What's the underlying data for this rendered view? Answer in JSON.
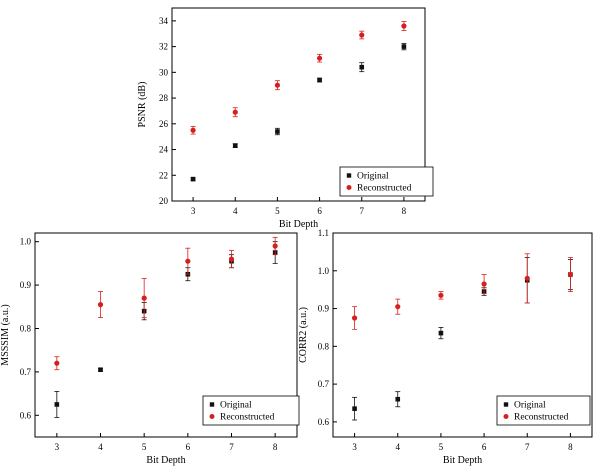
{
  "colors": {
    "original": "#111111",
    "reconstructed": "#d6201e"
  },
  "chart_data": [
    {
      "type": "scatter",
      "xlabel": "Bit Depth",
      "ylabel": "PSNR (dB)",
      "xlim": [
        2.5,
        8.5
      ],
      "ylim": [
        20,
        35
      ],
      "xticks": [
        3,
        4,
        5,
        6,
        7,
        8
      ],
      "yticks": [
        20,
        22,
        24,
        26,
        28,
        30,
        32,
        34
      ],
      "yticklabels": [
        "20",
        "22",
        "24",
        "26",
        "28",
        "30",
        "32",
        "34"
      ],
      "legend_position": "bottom-right",
      "grid": false,
      "series": [
        {
          "name": "Original",
          "x": [
            3,
            4,
            5,
            6,
            7,
            8
          ],
          "y": [
            21.7,
            24.3,
            25.4,
            29.4,
            30.4,
            32.0
          ],
          "err": [
            0.1,
            0.15,
            0.25,
            0.15,
            0.35,
            0.25
          ]
        },
        {
          "name": "Reconstructed",
          "x": [
            3,
            4,
            5,
            6,
            7,
            8
          ],
          "y": [
            25.5,
            26.9,
            29.0,
            31.1,
            32.9,
            33.6
          ],
          "err": [
            0.3,
            0.35,
            0.35,
            0.3,
            0.3,
            0.35
          ]
        }
      ]
    },
    {
      "type": "scatter",
      "xlabel": "Bit Depth",
      "ylabel": "MSSSIM (a.u.)",
      "xlim": [
        2.5,
        8.5
      ],
      "ylim": [
        0.55,
        1.02
      ],
      "xticks": [
        3,
        4,
        5,
        6,
        7,
        8
      ],
      "yticks": [
        0.6,
        0.7,
        0.8,
        0.9,
        1.0
      ],
      "yticklabels": [
        "0.6",
        "0.7",
        "0.8",
        "0.9",
        "1.0"
      ],
      "legend_position": "bottom-right",
      "grid": false,
      "series": [
        {
          "name": "Original",
          "x": [
            3,
            4,
            5,
            6,
            7,
            8
          ],
          "y": [
            0.625,
            0.705,
            0.84,
            0.925,
            0.955,
            0.975
          ],
          "err": [
            0.03,
            0.003,
            0.02,
            0.015,
            0.015,
            0.025
          ]
        },
        {
          "name": "Reconstructed",
          "x": [
            3,
            4,
            5,
            6,
            7,
            8
          ],
          "y": [
            0.72,
            0.855,
            0.87,
            0.955,
            0.96,
            0.99
          ],
          "err": [
            0.015,
            0.03,
            0.045,
            0.03,
            0.02,
            0.02
          ]
        }
      ]
    },
    {
      "type": "scatter",
      "xlabel": "Bit Depth",
      "ylabel": "CORR2 (a.u.)",
      "xlim": [
        2.5,
        8.5
      ],
      "ylim": [
        0.56,
        1.1
      ],
      "xticks": [
        3,
        4,
        5,
        6,
        7,
        8
      ],
      "yticks": [
        0.6,
        0.7,
        0.8,
        0.9,
        1.0,
        1.1
      ],
      "yticklabels": [
        "0.6",
        "0.7",
        "0.8",
        "0.9",
        "1.0",
        "1.1"
      ],
      "legend_position": "bottom-right",
      "grid": false,
      "series": [
        {
          "name": "Original",
          "x": [
            3,
            4,
            5,
            6,
            7,
            8
          ],
          "y": [
            0.635,
            0.66,
            0.835,
            0.945,
            0.975,
            0.99
          ],
          "err": [
            0.03,
            0.02,
            0.015,
            0.01,
            0.06,
            0.04
          ]
        },
        {
          "name": "Reconstructed",
          "x": [
            3,
            4,
            5,
            6,
            7,
            8
          ],
          "y": [
            0.875,
            0.905,
            0.935,
            0.965,
            0.98,
            0.99
          ],
          "err": [
            0.03,
            0.02,
            0.01,
            0.025,
            0.065,
            0.045
          ]
        }
      ]
    }
  ]
}
